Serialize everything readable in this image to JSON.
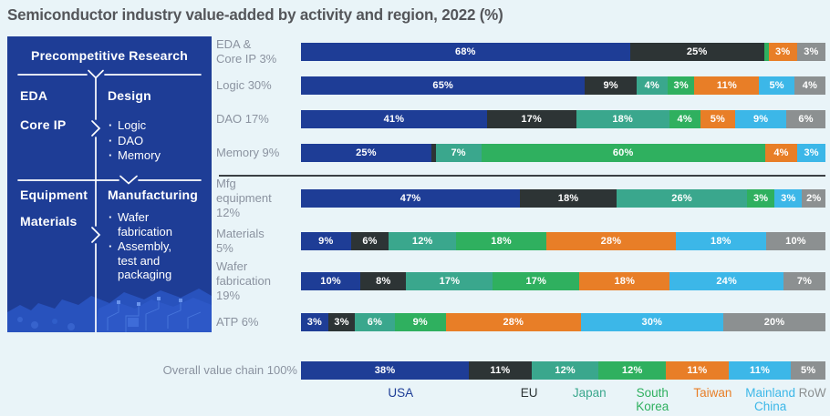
{
  "title": "Semiconductor industry value-added by activity and region, 2022 (%)",
  "sidebar": {
    "header": "Precompetitive Research",
    "eda": "EDA",
    "core_ip": "Core IP",
    "design_title": "Design",
    "design_items": [
      "Logic",
      "DAO",
      "Memory"
    ],
    "equipment": "Equipment",
    "materials": "Materials",
    "manufacturing_title": "Manufacturing",
    "manufacturing_items": [
      "Wafer fabrication",
      "Assembly, test and packaging"
    ]
  },
  "chart_data": {
    "type": "bar",
    "orientation": "horizontal-stacked",
    "unit": "%",
    "title": "Semiconductor industry value-added by activity and region, 2022 (%)",
    "legend_position": "bottom",
    "regions": [
      {
        "name": "USA",
        "legend_label": "USA",
        "color": "#1e3d96"
      },
      {
        "name": "EU",
        "legend_label": "EU",
        "color": "#2d3435"
      },
      {
        "name": "Japan",
        "legend_label": "Japan",
        "color": "#3aa78d"
      },
      {
        "name": "South Korea",
        "legend_label": "South\nKorea",
        "color": "#2fb05f"
      },
      {
        "name": "Taiwan",
        "legend_label": "Taiwan",
        "color": "#e87e27"
      },
      {
        "name": "Mainland China",
        "legend_label": "Mainland\nChina",
        "color": "#3cb7e8"
      },
      {
        "name": "RoW",
        "legend_label": "RoW",
        "color": "#8c9091"
      }
    ],
    "rows": [
      {
        "label": "EDA &\nCore IP 3%",
        "segments": [
          {
            "region": "USA",
            "value": 68,
            "label": "68%"
          },
          {
            "region": "EU",
            "value": 25,
            "label": "25%"
          },
          {
            "region": "South Korea",
            "value": 1,
            "label": null
          },
          {
            "region": "Taiwan",
            "value": 3,
            "label": "3%"
          },
          {
            "region": "RoW",
            "value": 3,
            "label": "3%"
          }
        ]
      },
      {
        "label": "Logic 30%",
        "segments": [
          {
            "region": "USA",
            "value": 65,
            "label": "65%"
          },
          {
            "region": "EU",
            "value": 9,
            "label": "9%"
          },
          {
            "region": "Japan",
            "value": 4,
            "label": "4%"
          },
          {
            "region": "South Korea",
            "value": 3,
            "label": "3%"
          },
          {
            "region": "Taiwan",
            "value": 11,
            "label": "11%"
          },
          {
            "region": "Mainland China",
            "value": 5,
            "label": "5%"
          },
          {
            "region": "RoW",
            "value": 4,
            "label": "4%"
          }
        ]
      },
      {
        "label": "DAO 17%",
        "segments": [
          {
            "region": "USA",
            "value": 41,
            "label": "41%"
          },
          {
            "region": "EU",
            "value": 17,
            "label": "17%"
          },
          {
            "region": "Japan",
            "value": 18,
            "label": "18%"
          },
          {
            "region": "South Korea",
            "value": 4,
            "label": "4%"
          },
          {
            "region": "Taiwan",
            "value": 5,
            "label": "5%"
          },
          {
            "region": "Mainland China",
            "value": 9,
            "label": "9%"
          },
          {
            "region": "RoW",
            "value": 6,
            "label": "6%"
          }
        ]
      },
      {
        "label": "Memory 9%",
        "segments": [
          {
            "region": "USA",
            "value": 25,
            "label": "25%"
          },
          {
            "region": "EU",
            "value": 1,
            "label": null
          },
          {
            "region": "Japan",
            "value": 7,
            "label": "7%"
          },
          {
            "region": "South Korea",
            "value": 60,
            "label": "60%"
          },
          {
            "region": "Taiwan",
            "value": 4,
            "label": "4%"
          },
          {
            "region": "Mainland China",
            "value": 3,
            "label": "3%"
          }
        ]
      },
      {
        "label": "Mfg\nequipment\n12%",
        "segments": [
          {
            "region": "USA",
            "value": 47,
            "label": "47%"
          },
          {
            "region": "EU",
            "value": 18,
            "label": "18%"
          },
          {
            "region": "Japan",
            "value": 26,
            "label": "26%"
          },
          {
            "region": "South Korea",
            "value": 3,
            "label": "3%"
          },
          {
            "region": "Mainland China",
            "value": 3,
            "label": "3%"
          },
          {
            "region": "RoW",
            "value": 2,
            "label": "2%"
          }
        ]
      },
      {
        "label": "Materials\n5%",
        "segments": [
          {
            "region": "USA",
            "value": 9,
            "label": "9%"
          },
          {
            "region": "EU",
            "value": 6,
            "label": "6%"
          },
          {
            "region": "Japan",
            "value": 12,
            "label": "12%"
          },
          {
            "region": "South Korea",
            "value": 18,
            "label": "18%"
          },
          {
            "region": "Taiwan",
            "value": 28,
            "label": "28%"
          },
          {
            "region": "Mainland China",
            "value": 18,
            "label": "18%"
          },
          {
            "region": "RoW",
            "value": 10,
            "label": "10%"
          }
        ]
      },
      {
        "label": "Wafer\nfabrication\n19%",
        "segments": [
          {
            "region": "USA",
            "value": 10,
            "label": "10%"
          },
          {
            "region": "EU",
            "value": 8,
            "label": "8%"
          },
          {
            "region": "Japan",
            "value": 17,
            "label": "17%"
          },
          {
            "region": "South Korea",
            "value": 17,
            "label": "17%"
          },
          {
            "region": "Taiwan",
            "value": 18,
            "label": "18%"
          },
          {
            "region": "Mainland China",
            "value": 24,
            "label": "24%"
          },
          {
            "region": "RoW",
            "value": 7,
            "label": "7%"
          }
        ]
      },
      {
        "label": "ATP 6%",
        "segments": [
          {
            "region": "USA",
            "value": 3,
            "label": "3%"
          },
          {
            "region": "EU",
            "value": 3,
            "label": "3%"
          },
          {
            "region": "Japan",
            "value": 6,
            "label": "6%"
          },
          {
            "region": "South Korea",
            "value": 9,
            "label": "9%"
          },
          {
            "region": "Taiwan",
            "value": 28,
            "label": "28%"
          },
          {
            "region": "Mainland China",
            "value": 30,
            "label": "30%"
          },
          {
            "region": "RoW",
            "value": 20,
            "label": "20%"
          }
        ]
      },
      {
        "label": "Overall value chain 100%",
        "wide": true,
        "segments": [
          {
            "region": "USA",
            "value": 38,
            "label": "38%"
          },
          {
            "region": "EU",
            "value": 11,
            "label": "11%"
          },
          {
            "region": "Japan",
            "value": 12,
            "label": "12%"
          },
          {
            "region": "South Korea",
            "value": 12,
            "label": "12%"
          },
          {
            "region": "Taiwan",
            "value": 11,
            "label": "11%"
          },
          {
            "region": "Mainland China",
            "value": 11,
            "label": "11%"
          },
          {
            "region": "RoW",
            "value": 5,
            "label": "5%"
          }
        ]
      }
    ]
  }
}
